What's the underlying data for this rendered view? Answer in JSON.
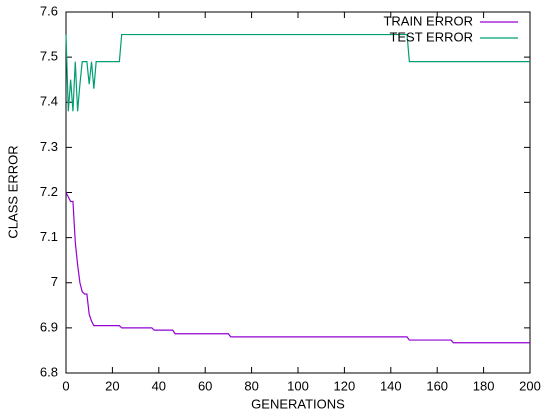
{
  "chart_data": {
    "type": "line",
    "xlabel": "GENERATIONS",
    "ylabel": "CLASS ERROR",
    "xlim": [
      0,
      200
    ],
    "xticks": [
      0,
      20,
      40,
      60,
      80,
      100,
      120,
      140,
      160,
      180,
      200
    ],
    "ylim": [
      6.8,
      7.6
    ],
    "yticks": [
      6.8,
      6.9,
      7,
      7.1,
      7.2,
      7.3,
      7.4,
      7.5,
      7.6
    ],
    "grid": false,
    "legend": "top-right",
    "series": [
      {
        "name": "TRAIN ERROR",
        "color": "#9400d3",
        "x": [
          0,
          1,
          2,
          3,
          4,
          5,
          6,
          7,
          8,
          9,
          10,
          11,
          12,
          23,
          24,
          37,
          38,
          46,
          47,
          70,
          71,
          147,
          148,
          166,
          167,
          200
        ],
        "values": [
          7.2,
          7.19,
          7.18,
          7.18,
          7.09,
          7.04,
          7.0,
          6.98,
          6.975,
          6.975,
          6.93,
          6.915,
          6.905,
          6.905,
          6.9,
          6.9,
          6.895,
          6.895,
          6.887,
          6.887,
          6.88,
          6.88,
          6.873,
          6.873,
          6.867,
          6.867
        ]
      },
      {
        "name": "TEST ERROR",
        "color": "#009e73",
        "x": [
          0,
          1,
          2,
          3,
          4,
          5,
          6,
          7,
          8,
          9,
          10,
          11,
          12,
          13,
          23,
          24,
          147,
          148,
          200
        ],
        "values": [
          7.55,
          7.38,
          7.45,
          7.38,
          7.49,
          7.38,
          7.44,
          7.49,
          7.49,
          7.49,
          7.44,
          7.49,
          7.43,
          7.49,
          7.49,
          7.55,
          7.55,
          7.49,
          7.49
        ]
      }
    ]
  }
}
